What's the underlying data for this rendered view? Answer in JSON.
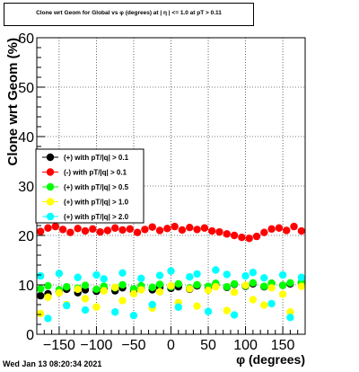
{
  "title": "Clone wrt Geom for Global vs φ (degrees) at | η | <= 1.0 at pT > 0.11",
  "timestamp": "Wed Jan 13 08:20:34 2021",
  "chart_data": {
    "type": "scatter",
    "xlabel": "φ (degrees)",
    "ylabel": "Clone wrt Geom (%)",
    "xlim": [
      -180,
      180
    ],
    "ylim": [
      0,
      60
    ],
    "xticks": [
      -150,
      -100,
      -50,
      0,
      50,
      100,
      150
    ],
    "yticks": [
      0,
      10,
      20,
      30,
      40,
      50,
      60
    ],
    "grid": true,
    "legend_position": "left-middle",
    "series": [
      {
        "name": "(+) with pT/|q| > 0.1",
        "color": "#000000",
        "x": [
          -175,
          -165,
          -150,
          -140,
          -125,
          -115,
          -100,
          -90,
          -75,
          -65,
          -50,
          -40,
          -25,
          -15,
          0,
          10,
          25,
          35,
          50,
          60,
          75,
          85,
          100,
          110,
          125,
          135,
          150,
          160,
          175
        ],
        "y": [
          7.8,
          8.2,
          8.6,
          9.1,
          8.4,
          9.0,
          8.7,
          9.2,
          8.8,
          9.4,
          8.6,
          9.2,
          9.0,
          9.5,
          9.3,
          9.6,
          9.1,
          9.8,
          9.4,
          10.0,
          9.5,
          10.1,
          9.7,
          10.2,
          9.6,
          10.3,
          9.9,
          10.2,
          10.4
        ]
      },
      {
        "name": "(-) with pT/|q| > 0.1",
        "color": "#ff0000",
        "x": [
          -175,
          -165,
          -155,
          -145,
          -135,
          -125,
          -115,
          -105,
          -95,
          -85,
          -75,
          -65,
          -55,
          -45,
          -35,
          -25,
          -15,
          -5,
          5,
          15,
          25,
          35,
          45,
          55,
          65,
          75,
          85,
          95,
          105,
          115,
          125,
          135,
          145,
          155,
          165,
          175
        ],
        "y": [
          20.8,
          21.5,
          21.8,
          21.2,
          20.6,
          21.4,
          20.9,
          21.3,
          20.7,
          21.0,
          21.5,
          21.1,
          21.3,
          20.6,
          21.2,
          21.7,
          21.0,
          21.4,
          21.8,
          21.1,
          21.6,
          21.2,
          21.5,
          20.9,
          20.7,
          20.3,
          20.0,
          19.6,
          19.4,
          19.8,
          20.6,
          21.3,
          21.5,
          21.0,
          21.8,
          20.9
        ]
      },
      {
        "name": "(+) with pT/|q| > 0.5",
        "color": "#00ff00",
        "x": [
          -175,
          -165,
          -150,
          -140,
          -125,
          -115,
          -100,
          -90,
          -75,
          -65,
          -50,
          -40,
          -25,
          -15,
          0,
          10,
          25,
          35,
          50,
          60,
          75,
          85,
          100,
          110,
          125,
          135,
          150,
          160,
          175
        ],
        "y": [
          9.2,
          9.8,
          9.0,
          9.6,
          9.3,
          9.9,
          9.1,
          9.7,
          9.4,
          10.0,
          9.2,
          9.8,
          9.5,
          10.1,
          9.6,
          10.2,
          9.4,
          10.0,
          9.7,
          10.3,
          9.6,
          10.2,
          9.8,
          10.4,
          9.7,
          10.3,
          9.9,
          10.4,
          10.6
        ]
      },
      {
        "name": "(+) with pT/|q| > 1.0",
        "color": "#ffff00",
        "x": [
          -175,
          -165,
          -150,
          -140,
          -125,
          -115,
          -100,
          -90,
          -75,
          -65,
          -50,
          -40,
          -25,
          -15,
          0,
          10,
          25,
          35,
          50,
          60,
          75,
          85,
          100,
          110,
          125,
          135,
          150,
          160,
          175
        ],
        "y": [
          4.2,
          7.5,
          8.4,
          6.0,
          9.1,
          7.2,
          5.5,
          8.8,
          9.5,
          6.8,
          8.2,
          9.0,
          5.3,
          8.6,
          9.8,
          6.4,
          9.2,
          5.7,
          8.9,
          9.6,
          4.8,
          8.5,
          9.9,
          7.0,
          5.9,
          9.4,
          8.1,
          4.5,
          9.7
        ]
      },
      {
        "name": "(+) with pT/|q| > 2.0",
        "color": "#00ffff",
        "x": [
          -175,
          -165,
          -150,
          -140,
          -125,
          -115,
          -100,
          -90,
          -75,
          -65,
          -50,
          -40,
          -25,
          -15,
          0,
          10,
          25,
          35,
          50,
          60,
          75,
          85,
          100,
          110,
          125,
          135,
          150,
          160,
          175
        ],
        "y": [
          11.8,
          3.2,
          12.3,
          5.8,
          11.5,
          4.9,
          12.0,
          11.2,
          4.5,
          12.4,
          3.8,
          11.3,
          6.0,
          11.9,
          12.8,
          5.5,
          11.6,
          12.2,
          4.6,
          13.0,
          12.1,
          3.9,
          11.8,
          12.5,
          11.4,
          6.2,
          12.0,
          3.4,
          11.5
        ]
      }
    ]
  }
}
